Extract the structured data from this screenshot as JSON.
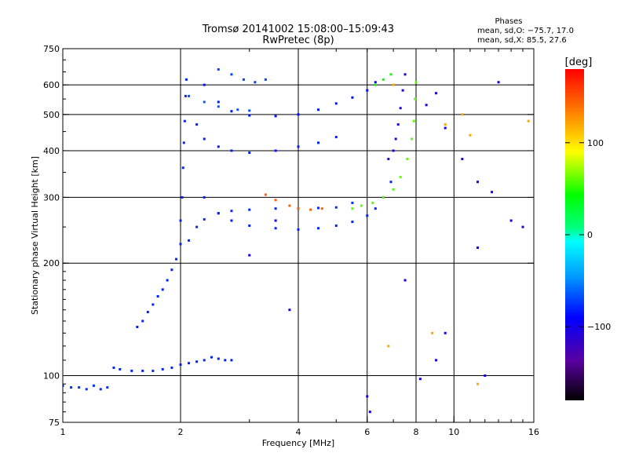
{
  "chart_data": {
    "type": "scatter",
    "title": "Tromsø 20141002 15:08:00–15:09:43",
    "subtitle": "RwPretec (8p)",
    "stats_title": "Phases",
    "stats_lines": [
      "mean, sd,O: −75.7, 17.0",
      "mean, sd,X:  85.5, 27.6"
    ],
    "xlabel": "Frequency [MHz]",
    "ylabel": "Stationary phase Virtual Height [km]",
    "x_scale": "log",
    "y_scale": "log",
    "xlim": [
      1,
      16
    ],
    "ylim": [
      75,
      750
    ],
    "x_ticks": [
      1,
      2,
      4,
      6,
      8,
      10,
      16
    ],
    "x_tick_labels": [
      "1",
      "2",
      "4",
      "6",
      "8",
      "10",
      "16"
    ],
    "y_ticks": [
      75,
      100,
      200,
      300,
      400,
      500,
      600,
      750
    ],
    "y_tick_labels": [
      "75",
      "100",
      "200",
      "300",
      "400",
      "500",
      "600",
      "750"
    ],
    "grid": true,
    "colorbar": {
      "label": "[deg]",
      "range": [
        -180,
        180
      ],
      "ticks": [
        100,
        0,
        -100
      ],
      "tick_labels": [
        "100",
        "0",
        "−100"
      ]
    },
    "traces": [
      {
        "phase_deg": -75,
        "points": [
          [
            1.0,
            94
          ],
          [
            1.05,
            93
          ],
          [
            1.1,
            93
          ],
          [
            1.15,
            92
          ],
          [
            1.2,
            94
          ],
          [
            1.25,
            92
          ],
          [
            1.3,
            93
          ]
        ]
      },
      {
        "phase_deg": -80,
        "points": [
          [
            1.35,
            105
          ],
          [
            1.4,
            104
          ],
          [
            1.5,
            103
          ],
          [
            1.6,
            103
          ],
          [
            1.7,
            103
          ],
          [
            1.8,
            104
          ],
          [
            1.9,
            105
          ],
          [
            2.0,
            107
          ],
          [
            2.1,
            108
          ],
          [
            2.2,
            109
          ],
          [
            2.3,
            110
          ],
          [
            2.4,
            112
          ],
          [
            2.5,
            111
          ],
          [
            2.6,
            110
          ],
          [
            2.7,
            110
          ]
        ]
      },
      {
        "phase_deg": -80,
        "points": [
          [
            1.55,
            135
          ],
          [
            1.6,
            140
          ],
          [
            1.65,
            148
          ],
          [
            1.7,
            155
          ],
          [
            1.75,
            163
          ],
          [
            1.8,
            170
          ],
          [
            1.85,
            180
          ],
          [
            1.9,
            192
          ],
          [
            1.95,
            205
          ],
          [
            2.0,
            225
          ],
          [
            2.0,
            260
          ],
          [
            2.02,
            300
          ],
          [
            2.03,
            360
          ],
          [
            2.04,
            420
          ],
          [
            2.05,
            480
          ],
          [
            2.06,
            560
          ],
          [
            2.07,
            620
          ]
        ]
      },
      {
        "phase_deg": -78,
        "points": [
          [
            2.1,
            230
          ],
          [
            2.2,
            250
          ],
          [
            2.3,
            262
          ],
          [
            2.5,
            272
          ],
          [
            2.7,
            276
          ],
          [
            3.0,
            278
          ],
          [
            3.5,
            280
          ],
          [
            4.0,
            280
          ],
          [
            4.5,
            281
          ],
          [
            5.0,
            282
          ],
          [
            5.5,
            290
          ]
        ]
      },
      {
        "phase_deg": -80,
        "points": [
          [
            2.3,
            300
          ],
          [
            2.5,
            272
          ],
          [
            2.7,
            260
          ],
          [
            3.0,
            252
          ],
          [
            3.5,
            248
          ],
          [
            4.0,
            246
          ],
          [
            4.5,
            248
          ],
          [
            5.0,
            252
          ],
          [
            5.5,
            258
          ],
          [
            6.0,
            268
          ],
          [
            6.3,
            280
          ],
          [
            6.6,
            300
          ],
          [
            6.9,
            330
          ]
        ]
      },
      {
        "phase_deg": -82,
        "points": [
          [
            2.2,
            470
          ],
          [
            2.3,
            430
          ],
          [
            2.5,
            410
          ],
          [
            2.7,
            400
          ],
          [
            3.0,
            395
          ],
          [
            3.5,
            400
          ],
          [
            4.0,
            410
          ],
          [
            4.5,
            420
          ],
          [
            5.0,
            435
          ]
        ]
      },
      {
        "phase_deg": -85,
        "points": [
          [
            2.3,
            600
          ],
          [
            2.5,
            540
          ],
          [
            2.7,
            510
          ],
          [
            3.0,
            497
          ],
          [
            3.5,
            495
          ],
          [
            4.0,
            500
          ],
          [
            4.5,
            515
          ],
          [
            5.0,
            535
          ],
          [
            5.5,
            555
          ],
          [
            6.0,
            580
          ],
          [
            6.3,
            610
          ]
        ]
      },
      {
        "phase_deg": -70,
        "points": [
          [
            2.5,
            660
          ],
          [
            2.7,
            640
          ],
          [
            2.9,
            620
          ],
          [
            3.1,
            610
          ],
          [
            3.3,
            620
          ]
        ]
      },
      {
        "phase_deg": -65,
        "points": [
          [
            2.1,
            560
          ],
          [
            2.3,
            540
          ],
          [
            2.5,
            525
          ],
          [
            2.8,
            515
          ],
          [
            3.0,
            512
          ]
        ]
      },
      {
        "phase_deg": -110,
        "points": [
          [
            6.8,
            380
          ],
          [
            7.0,
            400
          ],
          [
            7.1,
            430
          ],
          [
            7.2,
            470
          ],
          [
            7.3,
            520
          ],
          [
            7.4,
            580
          ],
          [
            7.5,
            640
          ]
        ]
      },
      {
        "phase_deg": 145,
        "points": [
          [
            3.3,
            305
          ],
          [
            3.5,
            295
          ],
          [
            3.8,
            285
          ],
          [
            4.0,
            280
          ],
          [
            4.3,
            278
          ],
          [
            4.6,
            280
          ]
        ]
      },
      {
        "phase_deg": 60,
        "points": [
          [
            5.5,
            280
          ],
          [
            5.8,
            285
          ],
          [
            6.2,
            290
          ],
          [
            6.6,
            300
          ],
          [
            7.0,
            315
          ],
          [
            7.3,
            340
          ],
          [
            7.6,
            380
          ],
          [
            7.8,
            430
          ],
          [
            7.9,
            480
          ],
          [
            7.95,
            550
          ],
          [
            8.0,
            610
          ]
        ]
      },
      {
        "phase_deg": 45,
        "points": [
          [
            6.3,
            600
          ],
          [
            6.6,
            620
          ],
          [
            6.9,
            640
          ]
        ]
      },
      {
        "phase_deg": -100,
        "points": [
          [
            8.5,
            530
          ],
          [
            9.0,
            570
          ],
          [
            9.5,
            460
          ],
          [
            10.5,
            380
          ],
          [
            11.5,
            330
          ],
          [
            12.5,
            310
          ],
          [
            14.0,
            260
          ],
          [
            15.0,
            250
          ],
          [
            9.5,
            130
          ],
          [
            9.0,
            110
          ],
          [
            8.2,
            98
          ],
          [
            12,
            100
          ],
          [
            6,
            88
          ],
          [
            6.1,
            80
          ],
          [
            3.8,
            150
          ],
          [
            3.0,
            210
          ],
          [
            3.5,
            260
          ],
          [
            7.5,
            180
          ],
          [
            11.5,
            220
          ],
          [
            13,
            610
          ]
        ]
      },
      {
        "phase_deg": 120,
        "points": [
          [
            9.5,
            470
          ],
          [
            10.5,
            500
          ],
          [
            11.0,
            440
          ],
          [
            11.5,
            95
          ],
          [
            15.5,
            480
          ],
          [
            8.8,
            130
          ],
          [
            6.8,
            120
          ],
          [
            7.0,
            600
          ]
        ]
      }
    ]
  }
}
